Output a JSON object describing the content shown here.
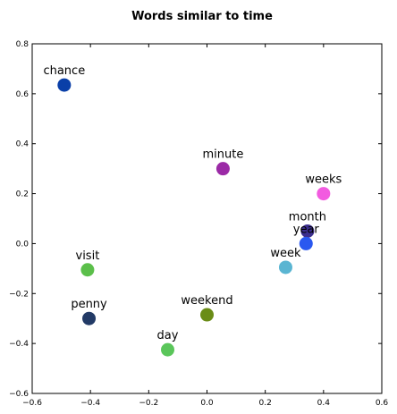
{
  "chart_data": {
    "type": "scatter",
    "title": "Words similar to time",
    "xlabel": "",
    "ylabel": "",
    "xlim": [
      -0.6,
      0.6
    ],
    "ylim": [
      -0.6,
      0.8
    ],
    "xticks": [
      "−0.6",
      "−0.4",
      "−0.2",
      "0.0",
      "0.2",
      "0.4",
      "0.6"
    ],
    "yticks": [
      "−0.6",
      "−0.4",
      "−0.2",
      "0.0",
      "0.2",
      "0.4",
      "0.6",
      "0.8"
    ],
    "grid": false,
    "points": [
      {
        "label": "chance",
        "x": -0.49,
        "y": 0.635,
        "color": "#0a3fa8"
      },
      {
        "label": "minute",
        "x": 0.055,
        "y": 0.3,
        "color": "#9b2aa6"
      },
      {
        "label": "weeks",
        "x": 0.4,
        "y": 0.2,
        "color": "#f25be0"
      },
      {
        "label": "month",
        "x": 0.345,
        "y": 0.05,
        "color": "#3c2f8f"
      },
      {
        "label": "year",
        "x": 0.34,
        "y": 0.0,
        "color": "#2a58f0"
      },
      {
        "label": "week",
        "x": 0.27,
        "y": -0.095,
        "color": "#5ab5d2"
      },
      {
        "label": "visit",
        "x": -0.41,
        "y": -0.105,
        "color": "#5bbf4a"
      },
      {
        "label": "weekend",
        "x": 0.0,
        "y": -0.285,
        "color": "#6a8c16"
      },
      {
        "label": "penny",
        "x": -0.405,
        "y": -0.3,
        "color": "#223a66"
      },
      {
        "label": "day",
        "x": -0.135,
        "y": -0.425,
        "color": "#5ac65a"
      }
    ]
  }
}
